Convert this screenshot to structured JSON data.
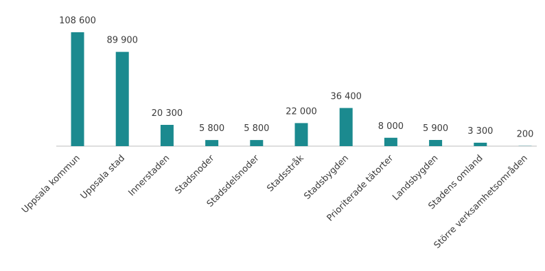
{
  "chart_data": {
    "type": "bar",
    "categories": [
      "Uppsala kommun",
      "Uppsala stad",
      "Innerstaden",
      "Stadsnoder",
      "Stadsdelsnoder",
      "Stadsstråk",
      "Stadsbygden",
      "Prioriterade tätorter",
      "Landsbygden",
      "Stadens omland",
      "Större verksamhetsområden"
    ],
    "values": [
      108600,
      89900,
      20300,
      5800,
      5800,
      22000,
      36400,
      8000,
      5900,
      3300,
      200
    ],
    "data_labels": [
      "108 600",
      "89 900",
      "20 300",
      "5 800",
      "5 800",
      "22 000",
      "36 400",
      "8 000",
      "5 900",
      "3 300",
      "200"
    ],
    "title": "",
    "xlabel": "",
    "ylabel": "",
    "ylim": [
      0,
      108600
    ],
    "grid": false,
    "legend": "none",
    "bar_color": "#1b8a8f",
    "axis_color": "#d4d4d4"
  }
}
